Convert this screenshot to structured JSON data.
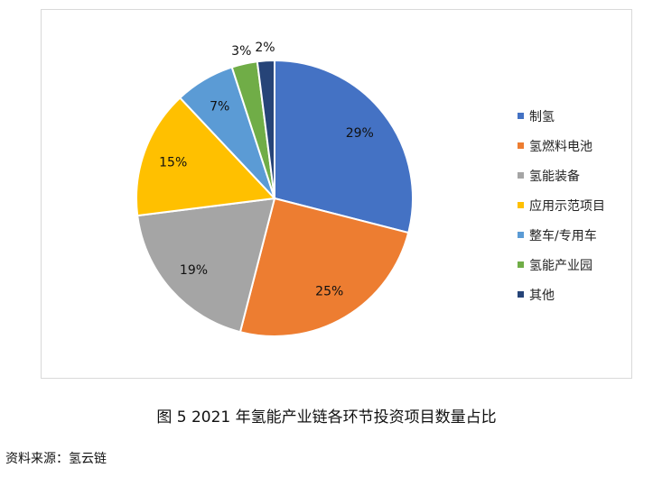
{
  "chart_data": {
    "type": "pie",
    "categories": [
      "制氢",
      "氢燃料电池",
      "氢能装备",
      "应用示范项目",
      "整车/专用车",
      "氢能产业园",
      "其他"
    ],
    "values": [
      29,
      25,
      19,
      15,
      7,
      3,
      2
    ],
    "data_labels": [
      "29%",
      "25%",
      "19%",
      "15%",
      "7%",
      "3%",
      "2%"
    ],
    "colors": [
      "#4472c4",
      "#ed7d31",
      "#a5a5a5",
      "#ffc000",
      "#5b9bd5",
      "#70ad47",
      "#264478"
    ],
    "start_angle": "12 o'clock",
    "direction": "clockwise",
    "legend_position": "right",
    "title": "图  5 2021 年氢能产业链各环节投资项目数量占比"
  },
  "source": "资料来源：氢云链"
}
